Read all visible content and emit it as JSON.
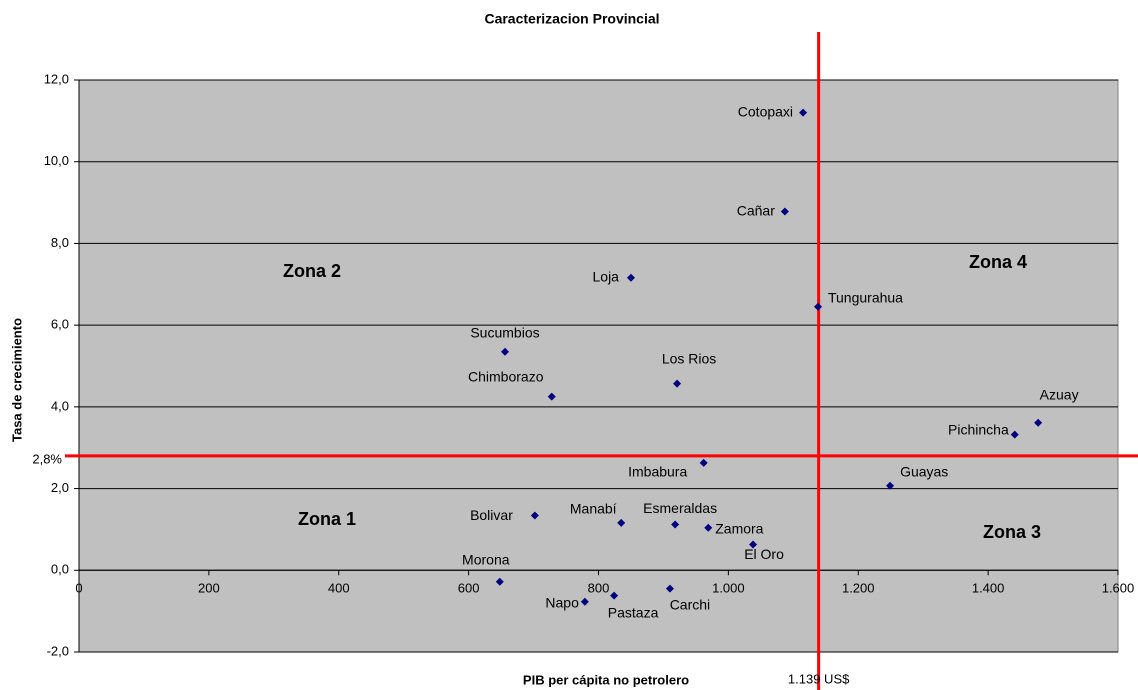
{
  "chart_data": {
    "type": "scatter",
    "title": "Caracterizacion Provincial",
    "x_label": "PIB per cápita no petrolero",
    "y_label": "Tasa de crecimiento",
    "xlim": [
      0,
      1600
    ],
    "ylim": [
      -2,
      12
    ],
    "xticks": [
      0,
      200,
      400,
      600,
      800,
      {
        "value": 1000,
        "label": "1.000"
      },
      {
        "value": 1200,
        "label": "1.200"
      },
      {
        "value": 1400,
        "label": "1.400"
      },
      {
        "value": 1600,
        "label": "1.600"
      }
    ],
    "yticks": [
      {
        "value": -2,
        "label": "-2,0"
      },
      {
        "value": 0,
        "label": "0,0"
      },
      {
        "value": 2,
        "label": "2,0"
      },
      {
        "value": 4,
        "label": "4,0"
      },
      {
        "value": 6,
        "label": "6,0"
      },
      {
        "value": 8,
        "label": "8,0"
      },
      {
        "value": 10,
        "label": "10,0"
      },
      {
        "value": 12,
        "label": "12,0"
      }
    ],
    "grid": true,
    "series": [
      {
        "color": "#000080",
        "labels": [
          "Cotopaxi",
          "Cañar",
          "Loja",
          "Tungurahua",
          "Sucumbios",
          "Los Rios",
          "Chimborazo",
          "Azuay",
          "Pichincha",
          "Imbabura",
          "Guayas",
          "Bolivar",
          "Manabí",
          "Esmeraldas",
          "Zamora",
          "El Oro",
          "Morona",
          "Carchi",
          "Pastaza",
          "Napo"
        ],
        "x": [
          1115,
          1087,
          850,
          1138,
          656,
          921,
          728,
          1477,
          1441,
          962,
          1249,
          702,
          835,
          918,
          969,
          1038,
          648,
          910,
          824,
          779
        ],
        "values": [
          11.2,
          8.78,
          7.16,
          6.45,
          5.35,
          4.57,
          4.25,
          3.61,
          3.32,
          2.63,
          2.07,
          1.34,
          1.16,
          1.12,
          1.04,
          0.63,
          -0.28,
          -0.45,
          -0.62,
          -0.77
        ]
      }
    ],
    "reference_lines": {
      "color": "#ff0000",
      "x": {
        "value": 1139,
        "label": "1.139 US$"
      },
      "y": {
        "value": 2.8,
        "label": "2,8%"
      }
    },
    "annotations": [
      "Zona 2",
      "Zona 4",
      "Zona 1",
      "Zona 3"
    ]
  }
}
